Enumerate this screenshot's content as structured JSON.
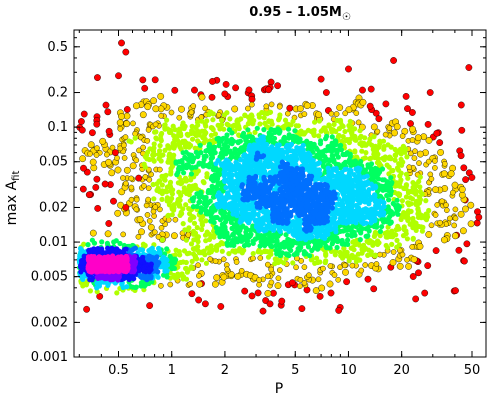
{
  "chart_data": {
    "type": "scatter",
    "title": "0.95 – 1.05M",
    "title_symbol": "☉",
    "xlabel": "P",
    "ylabel": "max A",
    "ylabel_subscript": "fit",
    "x_scale": "log",
    "y_scale": "log",
    "xlim": [
      0.28,
      60
    ],
    "ylim": [
      0.001,
      0.7
    ],
    "x_ticks": [
      {
        "value": 0.5,
        "label": "0.5"
      },
      {
        "value": 1,
        "label": "1"
      },
      {
        "value": 2,
        "label": "2"
      },
      {
        "value": 5,
        "label": "5"
      },
      {
        "value": 10,
        "label": "10"
      },
      {
        "value": 20,
        "label": "20"
      },
      {
        "value": 50,
        "label": "50"
      }
    ],
    "y_ticks": [
      {
        "value": 0.001,
        "label": "0.001"
      },
      {
        "value": 0.002,
        "label": "0.002"
      },
      {
        "value": 0.005,
        "label": "0.005"
      },
      {
        "value": 0.01,
        "label": "0.01"
      },
      {
        "value": 0.02,
        "label": "0.02"
      },
      {
        "value": 0.05,
        "label": "0.05"
      },
      {
        "value": 0.1,
        "label": "0.1"
      },
      {
        "value": 0.2,
        "label": "0.2"
      },
      {
        "value": 0.5,
        "label": "0.5"
      }
    ],
    "grid": false,
    "legend": "none",
    "density_colormap": [
      "#ff0000",
      "#ffd700",
      "#b0ff00",
      "#00ff60",
      "#00d8ff",
      "#0070ff",
      "#1010ff",
      "#8000ff",
      "#ff00c8"
    ],
    "density_clusters": [
      {
        "x_center": 5,
        "y_center": 0.022,
        "x_spread_dex": 0.4,
        "y_spread_dex": 0.3,
        "weight": 0.62
      },
      {
        "x_center": 0.45,
        "y_center": 0.0062,
        "x_spread_dex": 0.18,
        "y_spread_dex": 0.08,
        "weight": 0.22
      },
      {
        "x_center": 2.5,
        "y_center": 0.07,
        "x_spread_dex": 0.5,
        "y_spread_dex": 0.2,
        "weight": 0.16
      }
    ],
    "outlier_points": [
      {
        "x": 0.52,
        "y": 0.54
      },
      {
        "x": 0.55,
        "y": 0.45
      },
      {
        "x": 0.38,
        "y": 0.27
      },
      {
        "x": 0.5,
        "y": 0.28
      },
      {
        "x": 18,
        "y": 0.38
      },
      {
        "x": 48,
        "y": 0.33
      },
      {
        "x": 0.33,
        "y": 0.0026
      },
      {
        "x": 0.75,
        "y": 0.0028
      },
      {
        "x": 3.4,
        "y": 0.0031
      },
      {
        "x": 3.6,
        "y": 0.0029
      },
      {
        "x": 24,
        "y": 0.0032
      },
      {
        "x": 27,
        "y": 0.0036
      },
      {
        "x": 0.42,
        "y": 0.032
      },
      {
        "x": 0.55,
        "y": 0.02
      },
      {
        "x": 0.48,
        "y": 0.06
      },
      {
        "x": 0.65,
        "y": 0.036
      },
      {
        "x": 7.5,
        "y": 0.2
      },
      {
        "x": 12,
        "y": 0.21
      },
      {
        "x": 29,
        "y": 0.2
      },
      {
        "x": 1.7,
        "y": 0.25
      },
      {
        "x": 0.32,
        "y": 0.13
      }
    ]
  }
}
